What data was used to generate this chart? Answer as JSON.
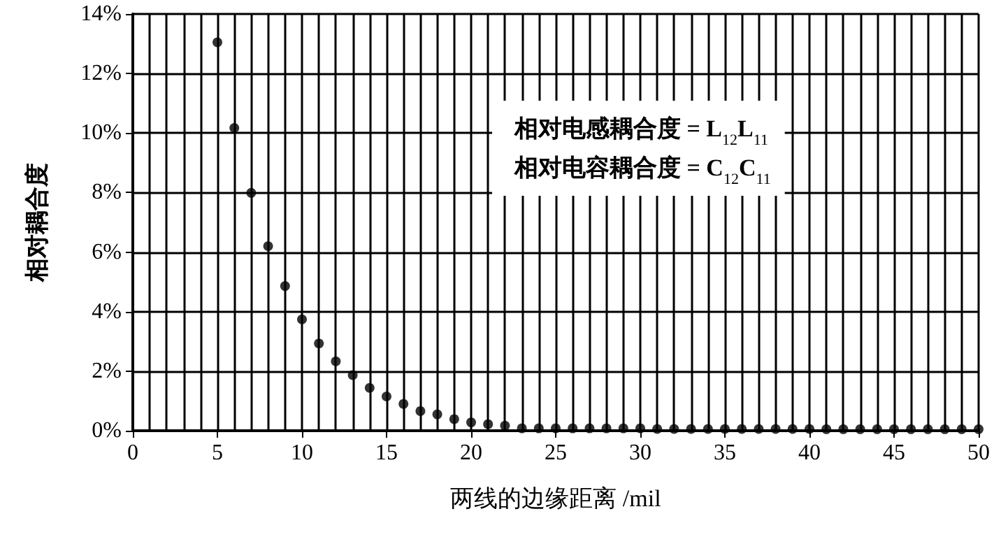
{
  "chart_data": {
    "type": "scatter",
    "xlabel": "两线的边缘距离 /mil",
    "ylabel": "相对耦合度",
    "annotations": [
      "相对电感耦合度 = L$_{12}$L$_{11}$",
      "相对电容耦合度 = C$_{12}$C$_{11}$"
    ],
    "x": [
      5,
      6,
      7,
      8,
      9,
      10,
      11,
      12,
      13,
      14,
      15,
      16,
      17,
      18,
      19,
      20,
      21,
      22,
      23,
      24,
      25,
      26,
      27,
      28,
      29,
      30,
      31,
      32,
      33,
      34,
      35,
      36,
      37,
      38,
      39,
      40,
      41,
      42,
      43,
      44,
      45,
      46,
      47,
      48,
      49,
      50
    ],
    "series": [
      {
        "color": "#000000",
        "values": [
          13.05,
          10.17,
          7.99,
          6.2,
          4.86,
          3.74,
          2.93,
          2.33,
          1.87,
          1.44,
          1.15,
          0.9,
          0.66,
          0.55,
          0.39,
          0.28,
          0.22,
          0.17,
          0.08,
          0.08,
          0.08,
          0.08,
          0.08,
          0.08,
          0.08,
          0.08,
          0.06,
          0.06,
          0.06,
          0.06,
          0.06,
          0.06,
          0.06,
          0.06,
          0.06,
          0.06,
          0.05,
          0.05,
          0.05,
          0.05,
          0.05,
          0.05,
          0.05,
          0.05,
          0.05,
          0.05
        ]
      }
    ],
    "xlim": [
      0,
      50
    ],
    "xticks": [
      0,
      5,
      10,
      15,
      20,
      25,
      30,
      35,
      40,
      45,
      50
    ],
    "ylim": [
      0,
      14
    ],
    "yticks": [
      {
        "value": 0,
        "label": "0%"
      },
      {
        "value": 2,
        "label": "2%"
      },
      {
        "value": 4,
        "label": "4%"
      },
      {
        "value": 6,
        "label": "6%"
      },
      {
        "value": 8,
        "label": "8%"
      },
      {
        "value": 10,
        "label": "10%"
      },
      {
        "value": 12,
        "label": "12%"
      },
      {
        "value": 14,
        "label": "14%"
      }
    ],
    "grid": true,
    "marker": "circle"
  }
}
